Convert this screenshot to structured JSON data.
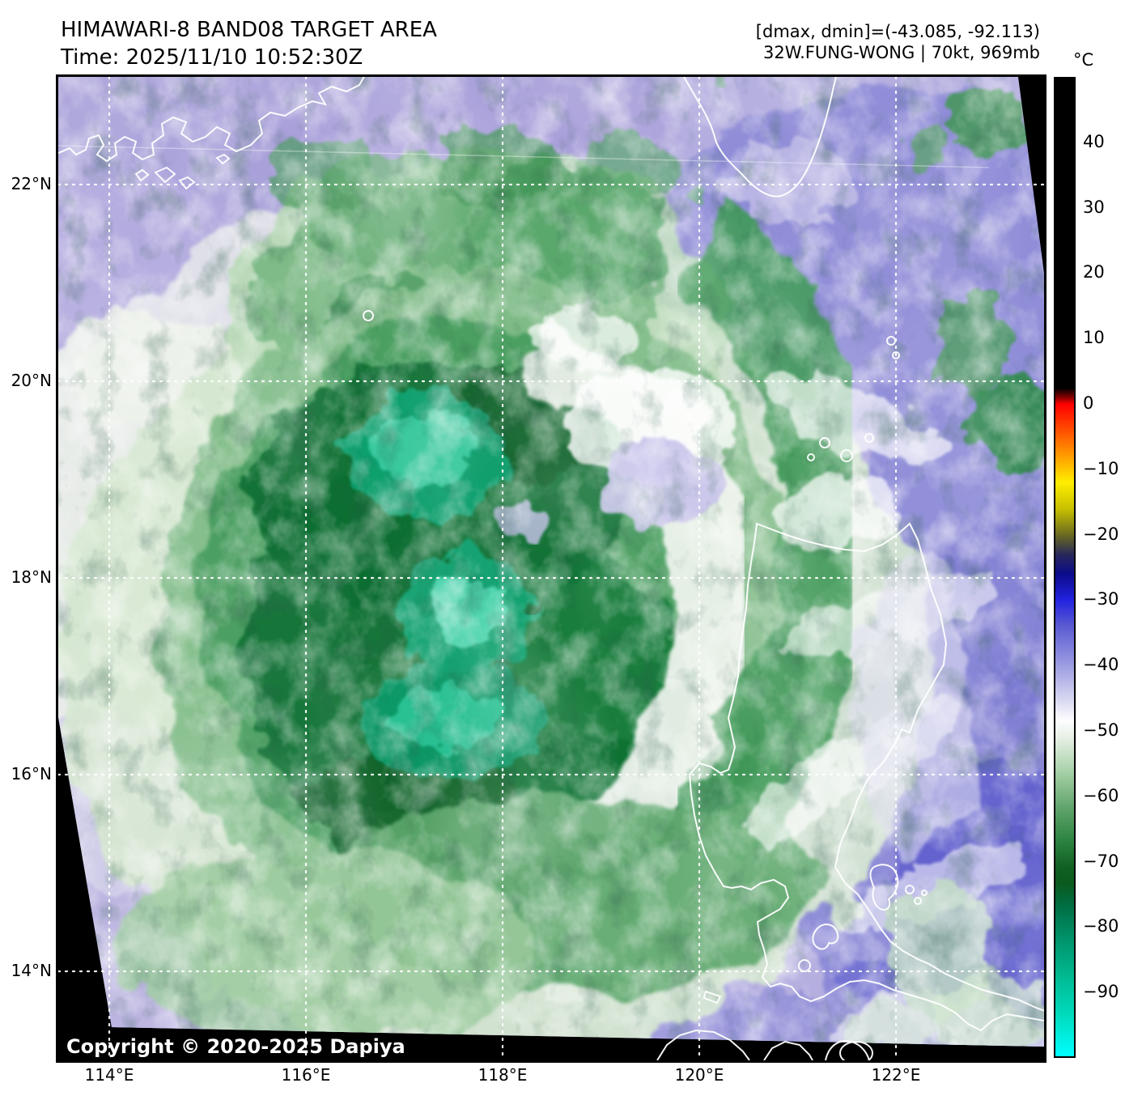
{
  "header": {
    "title_line1": "HIMAWARI-8 BAND08 TARGET AREA",
    "title_line2": "Time: 2025/11/10 10:52:30Z",
    "right_line1": "[dmax, dmin]=(-43.085, -92.113)",
    "right_line2": "32W.FUNG-WONG | 70kt, 969mb"
  },
  "colorbar": {
    "unit_label": "°C",
    "scale_top_value": 50,
    "scale_bottom_value": -100,
    "ticks": [
      {
        "label": "40",
        "value": 40
      },
      {
        "label": "30",
        "value": 30
      },
      {
        "label": "20",
        "value": 20
      },
      {
        "label": "10",
        "value": 10
      },
      {
        "label": "0",
        "value": 0
      },
      {
        "label": "−10",
        "value": -10
      },
      {
        "label": "−20",
        "value": -20
      },
      {
        "label": "−30",
        "value": -30
      },
      {
        "label": "−40",
        "value": -40
      },
      {
        "label": "−50",
        "value": -50
      },
      {
        "label": "−60",
        "value": -60
      },
      {
        "label": "−70",
        "value": -70
      },
      {
        "label": "−80",
        "value": -80
      },
      {
        "label": "−90",
        "value": -90
      }
    ],
    "gradient_stops": [
      {
        "value": 50,
        "color": "#000000"
      },
      {
        "value": 2.5,
        "color": "#000000"
      },
      {
        "value": 1.2,
        "color": "#7a0000"
      },
      {
        "value": 0,
        "color": "#ff0000"
      },
      {
        "value": -6,
        "color": "#ff7700"
      },
      {
        "value": -12,
        "color": "#ffee00"
      },
      {
        "value": -16,
        "color": "#c8c000"
      },
      {
        "value": -20,
        "color": "#6a6a20"
      },
      {
        "value": -23,
        "color": "#28285a"
      },
      {
        "value": -26,
        "color": "#0b0b8a"
      },
      {
        "value": -30,
        "color": "#2222e0"
      },
      {
        "value": -34,
        "color": "#5b5bd2"
      },
      {
        "value": -40,
        "color": "#9c9ce2"
      },
      {
        "value": -45,
        "color": "#d4d4f0"
      },
      {
        "value": -48.5,
        "color": "#fdfdfe"
      },
      {
        "value": -51,
        "color": "#e8f1e6"
      },
      {
        "value": -56,
        "color": "#abd3ab"
      },
      {
        "value": -62,
        "color": "#5fa36b"
      },
      {
        "value": -67,
        "color": "#2b8340"
      },
      {
        "value": -71,
        "color": "#115f23"
      },
      {
        "value": -73.5,
        "color": "#0a5a1e"
      },
      {
        "value": -77,
        "color": "#006e44"
      },
      {
        "value": -82,
        "color": "#00936a"
      },
      {
        "value": -88,
        "color": "#00bb93"
      },
      {
        "value": -94,
        "color": "#00ddc0"
      },
      {
        "value": -100,
        "color": "#00ffff"
      }
    ]
  },
  "map": {
    "copyright": "Copyright © 2020-2025 Dapiya",
    "lat_gridlines": [
      {
        "label": "22°N",
        "lat": 22
      },
      {
        "label": "20°N",
        "lat": 20
      },
      {
        "label": "18°N",
        "lat": 18
      },
      {
        "label": "16°N",
        "lat": 16
      },
      {
        "label": "14°N",
        "lat": 14
      }
    ],
    "lon_gridlines": [
      {
        "label": "114°E",
        "lon": 114
      },
      {
        "label": "116°E",
        "lon": 116
      },
      {
        "label": "118°E",
        "lon": 118
      },
      {
        "label": "120°E",
        "lon": 120
      },
      {
        "label": "122°E",
        "lon": 122
      }
    ]
  }
}
